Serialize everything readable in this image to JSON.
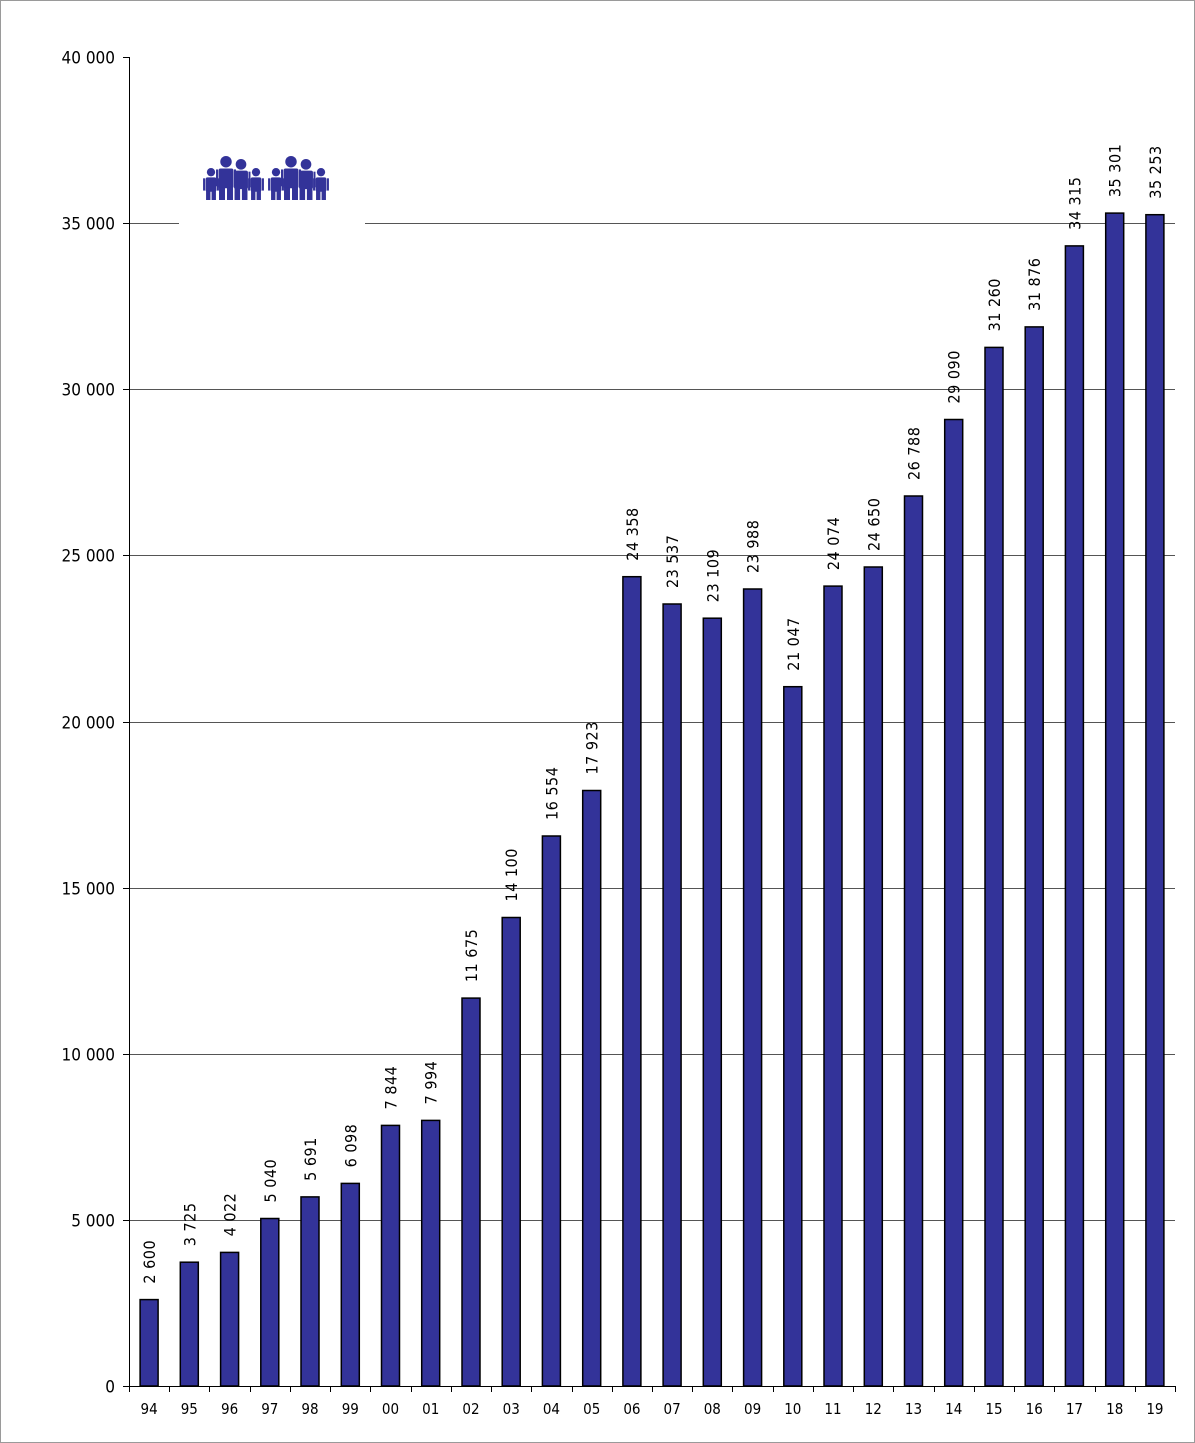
{
  "chart_data": {
    "type": "bar",
    "categories": [
      "94",
      "95",
      "96",
      "97",
      "98",
      "99",
      "00",
      "01",
      "02",
      "03",
      "04",
      "05",
      "06",
      "07",
      "08",
      "09",
      "10",
      "11",
      "12",
      "13",
      "14",
      "15",
      "16",
      "17",
      "18",
      "19"
    ],
    "values": [
      2600,
      3725,
      4022,
      5040,
      5691,
      6098,
      7844,
      7994,
      11675,
      14100,
      16554,
      17923,
      24358,
      23537,
      23109,
      23988,
      21047,
      24074,
      24650,
      26788,
      29090,
      31260,
      31876,
      34315,
      35301,
      35253
    ],
    "data_labels": [
      "2 600",
      "3 725",
      "4 022",
      "5 040",
      "5 691",
      "6 098",
      "7 844",
      "7 994",
      "11 675",
      "14 100",
      "16 554",
      "17 923",
      "24 358",
      "23 537",
      "23 109",
      "23 988",
      "21 047",
      "24 074",
      "24 650",
      "26 788",
      "29 090",
      "31 260",
      "31 876",
      "34 315",
      "35 301",
      "35 253"
    ],
    "y_ticks": [
      0,
      5000,
      10000,
      15000,
      20000,
      25000,
      30000,
      35000,
      40000
    ],
    "y_tick_labels": [
      "0",
      "5 000",
      "10 000",
      "15 000",
      "20 000",
      "25 000",
      "30 000",
      "35 000",
      "40 000"
    ],
    "ylim": [
      0,
      40000
    ],
    "title": "",
    "xlabel": "",
    "ylabel": "",
    "grid": "horizontal",
    "legend": "none",
    "bar_color": "#333399",
    "bar_edge_color": "#000000",
    "icon": "family-group-icon",
    "icon_color": "#333399"
  }
}
